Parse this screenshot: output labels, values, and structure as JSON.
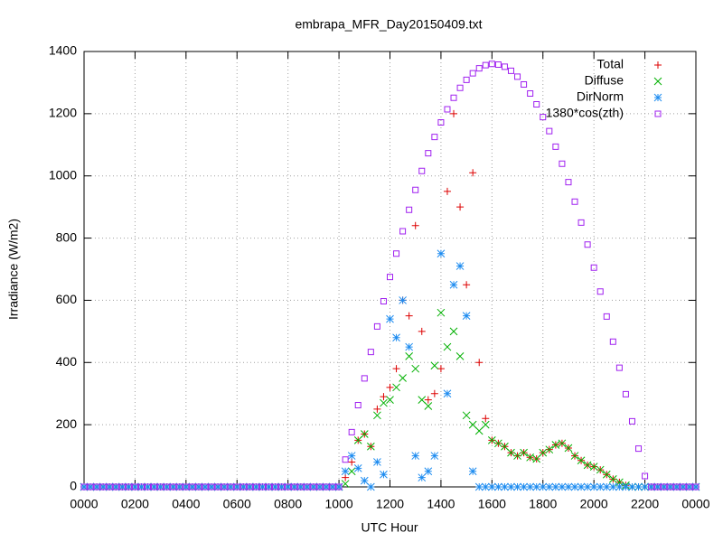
{
  "chart_data": {
    "type": "scatter",
    "title": "embrapa_MFR_Day20150409.txt",
    "xlabel": "UTC Hour",
    "ylabel": "Irradiance (W/m2)",
    "xlim": [
      0,
      24
    ],
    "ylim": [
      0,
      1400
    ],
    "xticks": [
      {
        "value": 0,
        "label": "0000"
      },
      {
        "value": 2,
        "label": "0200"
      },
      {
        "value": 4,
        "label": "0400"
      },
      {
        "value": 6,
        "label": "0600"
      },
      {
        "value": 8,
        "label": "0800"
      },
      {
        "value": 10,
        "label": "1000"
      },
      {
        "value": 12,
        "label": "1200"
      },
      {
        "value": 14,
        "label": "1400"
      },
      {
        "value": 16,
        "label": "1600"
      },
      {
        "value": 18,
        "label": "1800"
      },
      {
        "value": 20,
        "label": "2000"
      },
      {
        "value": 22,
        "label": "2200"
      },
      {
        "value": 24,
        "label": "0000"
      }
    ],
    "yticks": [
      0,
      200,
      400,
      600,
      800,
      1000,
      1200,
      1400
    ],
    "grid": true,
    "legend": "top-right",
    "x": [
      0,
      0.25,
      0.5,
      0.75,
      1,
      1.25,
      1.5,
      1.75,
      2,
      2.25,
      2.5,
      2.75,
      3,
      3.25,
      3.5,
      3.75,
      4,
      4.25,
      4.5,
      4.75,
      5,
      5.25,
      5.5,
      5.75,
      6,
      6.25,
      6.5,
      6.75,
      7,
      7.25,
      7.5,
      7.75,
      8,
      8.25,
      8.5,
      8.75,
      9,
      9.25,
      9.5,
      9.75,
      10,
      10.25,
      10.5,
      10.75,
      11,
      11.25,
      11.5,
      11.75,
      12,
      12.25,
      12.5,
      12.75,
      13,
      13.25,
      13.5,
      13.75,
      14,
      14.25,
      14.5,
      14.75,
      15,
      15.25,
      15.5,
      15.75,
      16,
      16.25,
      16.5,
      16.75,
      17,
      17.25,
      17.5,
      17.75,
      18,
      18.25,
      18.5,
      18.75,
      19,
      19.25,
      19.5,
      19.75,
      20,
      20.25,
      20.5,
      20.75,
      21,
      21.25,
      21.5,
      21.75,
      22,
      22.25,
      22.5,
      22.75,
      23,
      23.25,
      23.5,
      23.75,
      24
    ],
    "series": [
      {
        "name": "Total",
        "color": "#dd0000",
        "marker": "plus",
        "values": [
          0,
          0,
          0,
          0,
          0,
          0,
          0,
          0,
          0,
          0,
          0,
          0,
          0,
          0,
          0,
          0,
          0,
          0,
          0,
          0,
          0,
          0,
          0,
          0,
          0,
          0,
          0,
          0,
          0,
          0,
          0,
          0,
          0,
          0,
          0,
          0,
          0,
          0,
          0,
          0,
          0,
          30,
          80,
          150,
          170,
          130,
          250,
          290,
          320,
          380,
          600,
          550,
          840,
          500,
          280,
          300,
          380,
          950,
          1200,
          900,
          650,
          1010,
          400,
          220,
          150,
          140,
          130,
          110,
          100,
          110,
          95,
          90,
          110,
          120,
          135,
          140,
          125,
          100,
          85,
          70,
          65,
          55,
          40,
          25,
          15,
          5,
          0,
          0,
          0,
          0,
          0,
          0,
          0,
          0,
          0,
          0,
          0
        ]
      },
      {
        "name": "Diffuse",
        "color": "#00b000",
        "marker": "cross",
        "values": [
          0,
          0,
          0,
          0,
          0,
          0,
          0,
          0,
          0,
          0,
          0,
          0,
          0,
          0,
          0,
          0,
          0,
          0,
          0,
          0,
          0,
          0,
          0,
          0,
          0,
          0,
          0,
          0,
          0,
          0,
          0,
          0,
          0,
          0,
          0,
          0,
          0,
          0,
          0,
          0,
          0,
          10,
          50,
          150,
          170,
          130,
          230,
          270,
          280,
          320,
          350,
          420,
          380,
          280,
          260,
          390,
          560,
          450,
          500,
          420,
          230,
          200,
          180,
          200,
          150,
          140,
          130,
          110,
          100,
          110,
          95,
          90,
          110,
          120,
          135,
          140,
          125,
          100,
          85,
          70,
          65,
          55,
          40,
          25,
          15,
          5,
          0,
          0,
          0,
          0,
          0,
          0,
          0,
          0,
          0,
          0,
          0
        ]
      },
      {
        "name": "DirNorm",
        "color": "#1e8cf0",
        "marker": "star",
        "values": [
          0,
          0,
          0,
          0,
          0,
          0,
          0,
          0,
          0,
          0,
          0,
          0,
          0,
          0,
          0,
          0,
          0,
          0,
          0,
          0,
          0,
          0,
          0,
          0,
          0,
          0,
          0,
          0,
          0,
          0,
          0,
          0,
          0,
          0,
          0,
          0,
          0,
          0,
          0,
          0,
          0,
          50,
          100,
          60,
          20,
          0,
          80,
          40,
          540,
          480,
          600,
          450,
          100,
          30,
          50,
          100,
          750,
          300,
          650,
          710,
          550,
          50,
          0,
          0,
          0,
          0,
          0,
          0,
          0,
          0,
          0,
          0,
          0,
          0,
          0,
          0,
          0,
          0,
          0,
          0,
          0,
          0,
          0,
          0,
          0,
          0,
          0,
          0,
          0,
          0,
          0,
          0,
          0,
          0,
          0,
          0,
          0
        ]
      },
      {
        "name": "1380*cos(zth)",
        "color": "#a020f0",
        "marker": "square",
        "values": [
          0,
          0,
          0,
          0,
          0,
          0,
          0,
          0,
          0,
          0,
          0,
          0,
          0,
          0,
          0,
          0,
          0,
          0,
          0,
          0,
          0,
          0,
          0,
          0,
          0,
          0,
          0,
          0,
          0,
          0,
          0,
          0,
          0,
          0,
          0,
          0,
          0,
          0,
          0,
          0,
          0,
          88,
          176,
          263,
          349,
          434,
          516,
          597,
          675,
          750,
          822,
          891,
          955,
          1016,
          1073,
          1125,
          1172,
          1214,
          1251,
          1283,
          1309,
          1330,
          1346,
          1356,
          1360,
          1358,
          1351,
          1338,
          1319,
          1294,
          1265,
          1230,
          1189,
          1144,
          1094,
          1039,
          980,
          917,
          850,
          779,
          705,
          628,
          548,
          467,
          383,
          298,
          211,
          123,
          35,
          0,
          0,
          0,
          0,
          0,
          0,
          0,
          0
        ]
      }
    ]
  }
}
